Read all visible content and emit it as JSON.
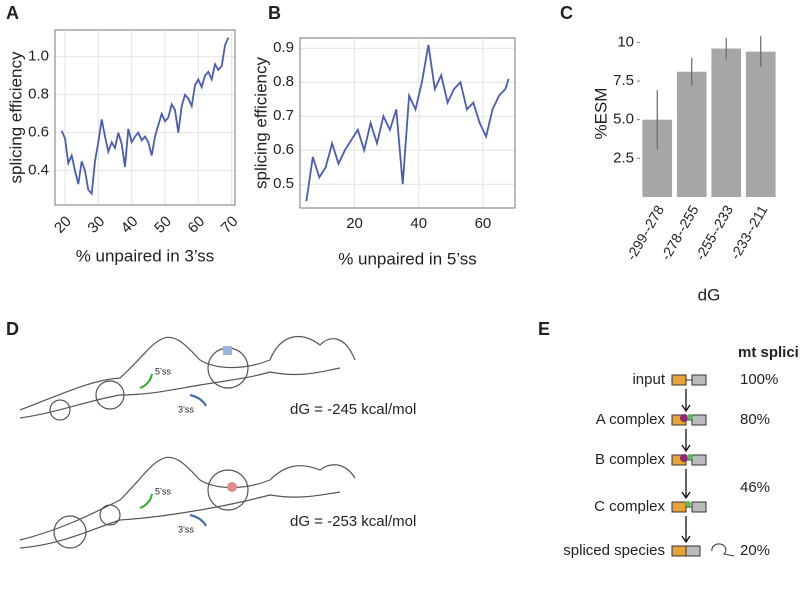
{
  "panel_labels": [
    "A",
    "B",
    "C",
    "D",
    "E"
  ],
  "chart_data": [
    {
      "type": "line",
      "xlabel": "% unpaired in 3’ss",
      "ylabel": "splicing efficiency",
      "grid": true,
      "xtick_rotation": 45,
      "color": "#4a5db0",
      "x": [
        19,
        20,
        21,
        22,
        23,
        24,
        25,
        26,
        27,
        28,
        29,
        30,
        31,
        32,
        33,
        34,
        35,
        36,
        37,
        38,
        39,
        40,
        41,
        42,
        43,
        44,
        45,
        46,
        47,
        48,
        49,
        50,
        51,
        52,
        53,
        54,
        55,
        56,
        57,
        58,
        59,
        60,
        61,
        62,
        63,
        64,
        65,
        66,
        67,
        68,
        69
      ],
      "values": [
        0.61,
        0.57,
        0.44,
        0.48,
        0.4,
        0.33,
        0.45,
        0.4,
        0.3,
        0.28,
        0.45,
        0.55,
        0.67,
        0.58,
        0.5,
        0.55,
        0.52,
        0.6,
        0.54,
        0.42,
        0.62,
        0.55,
        0.58,
        0.6,
        0.56,
        0.58,
        0.55,
        0.48,
        0.58,
        0.64,
        0.7,
        0.66,
        0.68,
        0.75,
        0.72,
        0.6,
        0.74,
        0.8,
        0.78,
        0.74,
        0.85,
        0.88,
        0.84,
        0.9,
        0.92,
        0.88,
        0.96,
        0.93,
        0.95,
        1.06,
        1.1
      ],
      "xlim": [
        17,
        71
      ],
      "xticks": [
        20,
        30,
        40,
        50,
        60,
        70
      ],
      "ylim": [
        0.22,
        1.14
      ],
      "yticks": [
        0.4,
        0.6,
        0.8,
        {
          "value": 1,
          "label": "1.0"
        }
      ]
    },
    {
      "type": "line",
      "xlabel": "% unpaired in 5’ss",
      "ylabel": "splicing efficiency",
      "grid": true,
      "xtick_rotation": 0,
      "color": "#4a5db0",
      "x": [
        5,
        7,
        9,
        11,
        13,
        15,
        17,
        19,
        21,
        23,
        25,
        27,
        29,
        31,
        33,
        35,
        37,
        39,
        41,
        43,
        45,
        47,
        49,
        51,
        53,
        55,
        57,
        59,
        61,
        63,
        65,
        67,
        68
      ],
      "values": [
        0.45,
        0.58,
        0.52,
        0.55,
        0.62,
        0.56,
        0.6,
        0.63,
        0.66,
        0.6,
        0.68,
        0.62,
        0.7,
        0.66,
        0.72,
        0.5,
        0.76,
        0.72,
        0.8,
        0.91,
        0.78,
        0.82,
        0.74,
        0.78,
        0.8,
        0.72,
        0.74,
        0.68,
        0.64,
        0.72,
        0.76,
        0.78,
        0.81
      ],
      "xlim": [
        3,
        70
      ],
      "xticks": [
        20,
        40,
        60
      ],
      "ylim": [
        0.43,
        0.93
      ],
      "yticks": [
        0.5,
        0.6,
        0.7,
        0.8,
        0.9
      ]
    },
    {
      "type": "bar",
      "xlabel": "dG",
      "ylabel": "%ESM",
      "grid": false,
      "xtick_rotation": 60,
      "color": "#a6a6a6",
      "categories": [
        "-299--278",
        "-278--255",
        "-255--233",
        "-233--211"
      ],
      "values": [
        5.0,
        8.1,
        9.6,
        9.4
      ],
      "errors": [
        1.9,
        0.9,
        0.7,
        1.0
      ],
      "ylim": [
        0,
        10.8
      ],
      "yticks": [
        2.5,
        {
          "value": 5,
          "label": "5.0"
        },
        7.5,
        10
      ]
    }
  ],
  "diagram_d": {
    "structures": [
      {
        "five_ss": "5’ss",
        "three_ss": "3’ss",
        "dg": "dG = -245 kcal/mol"
      },
      {
        "five_ss": "5’ss",
        "three_ss": "3’ss",
        "dg": "dG = -253 kcal/mol"
      }
    ]
  },
  "diagram_e": {
    "header": "mt splicing",
    "steps": [
      "input",
      "A complex",
      "B complex",
      "C complex",
      "spliced species"
    ],
    "percents": [
      "100%",
      "80%",
      "46%",
      "20%"
    ]
  }
}
